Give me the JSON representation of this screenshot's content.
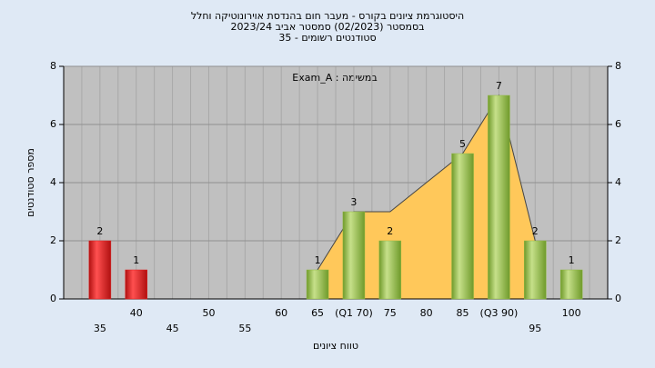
{
  "chart_data": {
    "type": "bar",
    "title": "היסטוגרמת ציונים בקורס - מעבר חום בהנדסת אוירונוטיקה וחלל",
    "subtitle": "בסמסטר  (02/2023)  סמסטר אביב 2023/24",
    "subtitle2": "סטודנטים רשומים - 35",
    "annotation": "במשימה : Exam_A",
    "x_label": "טווח ציונים",
    "y_label": "מספר סטודנטים",
    "categories": [
      "35",
      "40",
      "45",
      "50",
      "55",
      "60",
      "65",
      "(Q1 70)",
      "75",
      "80",
      "85",
      "(Q3 90)",
      "95",
      "100"
    ],
    "series": [
      {
        "values": [
          2,
          1,
          0,
          0,
          0,
          0,
          1,
          3,
          2,
          0,
          5,
          7,
          2,
          1
        ],
        "colors": [
          "#e02020",
          "#e02020",
          "#8fb843",
          "#8fb843",
          "#8fb843",
          "#8fb843",
          "#8fb843",
          "#8fb843",
          "#8fb843",
          "#8fb843",
          "#8fb843",
          "#8fb843",
          "#8fb843",
          "#8fb843"
        ]
      },
      {
        "type": "area",
        "color": "#ffc85a",
        "values": [
          null,
          null,
          null,
          null,
          null,
          null,
          1,
          3,
          3,
          4,
          5,
          7,
          2,
          null
        ]
      }
    ],
    "ylim": [
      0,
      8
    ],
    "yticks": [
      0,
      2,
      4,
      6,
      8
    ],
    "y2lim": [
      0,
      8
    ],
    "y2ticks": [
      0,
      2,
      4,
      6,
      8
    ],
    "grid": true
  }
}
